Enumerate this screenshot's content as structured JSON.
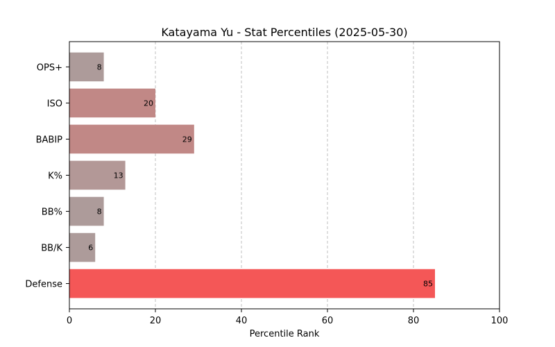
{
  "chart_data": {
    "type": "bar",
    "orientation": "horizontal",
    "title": "Katayama Yu - Stat Percentiles (2025-05-30)",
    "xlabel": "Percentile Rank",
    "ylabel": "",
    "xlim": [
      0,
      100
    ],
    "xticks": [
      0,
      20,
      40,
      60,
      80,
      100
    ],
    "grid": "x-dashed",
    "categories": [
      "OPS+",
      "ISO",
      "BABIP",
      "K%",
      "BB%",
      "BB/K",
      "Defense"
    ],
    "values": [
      8,
      20,
      29,
      13,
      8,
      6,
      85
    ],
    "colors": [
      "#ad9b9a",
      "#c18886",
      "#c18886",
      "#b39897",
      "#ad9b9a",
      "#ad9b9a",
      "#f45757"
    ]
  }
}
